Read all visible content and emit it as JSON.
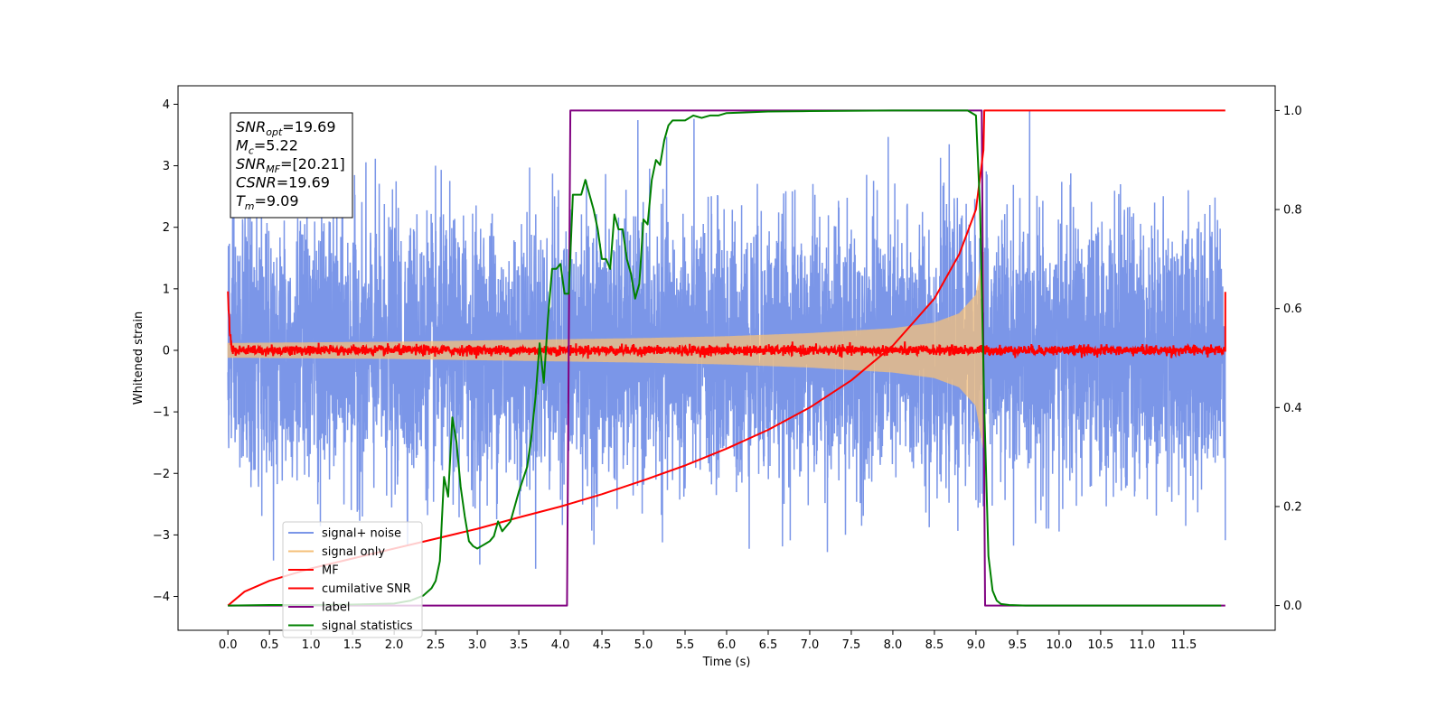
{
  "chart_data": {
    "type": "line",
    "title": "",
    "xlabel": "Time (s)",
    "ylabel": "Whitened strain",
    "y2label": "",
    "xlim": [
      -0.6,
      12.6
    ],
    "ylim": [
      -4.55,
      4.3
    ],
    "y2lim": [
      -0.05,
      1.05
    ],
    "x_ticks": [
      "0.0",
      "0.5",
      "1.0",
      "1.5",
      "2.0",
      "2.5",
      "3.0",
      "3.5",
      "4.0",
      "4.5",
      "5.0",
      "5.5",
      "6.0",
      "6.5",
      "7.0",
      "7.5",
      "8.0",
      "8.5",
      "9.0",
      "9.5",
      "10.0",
      "10.5",
      "11.0",
      "11.5"
    ],
    "y_ticks": [
      "−4",
      "−3",
      "−2",
      "−1",
      "0",
      "1",
      "2",
      "3",
      "4"
    ],
    "y2_ticks": [
      "0.0",
      "0.2",
      "0.4",
      "0.6",
      "0.8",
      "1.0"
    ],
    "grid": false,
    "legend_position": "lower-left",
    "annotation": {
      "lines": [
        {
          "base": "SNR",
          "sub": "opt",
          "value": "=19.69"
        },
        {
          "base": "M",
          "sub": "c",
          "value": "=5.22"
        },
        {
          "base": "SNR",
          "sub": "MF",
          "value": "=[20.21]"
        },
        {
          "base": "CSNR",
          "sub": "",
          "value": "=19.69"
        },
        {
          "base": "T",
          "sub": "m",
          "value": "=9.09"
        }
      ]
    },
    "series": [
      {
        "name": "signal+ noise",
        "color": "#7b96e8",
        "axis": "left",
        "description_values": {
          "t_start": 0.0,
          "t_end": 12.0,
          "noise_sigma": 1.05,
          "mean": 0.0
        }
      },
      {
        "name": "signal only",
        "color": "#f5c07a",
        "axis": "left",
        "envelope": {
          "x": [
            0.0,
            1.0,
            2.0,
            3.0,
            4.0,
            5.0,
            6.0,
            7.0,
            8.0,
            8.5,
            8.8,
            9.0,
            9.09
          ],
          "y": [
            0.12,
            0.13,
            0.14,
            0.16,
            0.18,
            0.2,
            0.23,
            0.28,
            0.36,
            0.45,
            0.6,
            0.9,
            1.6
          ]
        }
      },
      {
        "name": "MF",
        "color": "#ff0000",
        "axis": "left",
        "x": [
          0.0,
          0.02,
          0.05,
          12.0,
          12.03,
          12.05
        ],
        "y": [
          1.0,
          0.4,
          0.05,
          0.05,
          0.3,
          0.95
        ]
      },
      {
        "name": "cumilative SNR",
        "color": "#ff0000",
        "axis": "right",
        "x": [
          0.0,
          0.2,
          0.5,
          1.0,
          1.5,
          2.0,
          2.5,
          3.0,
          3.5,
          4.0,
          4.5,
          5.0,
          5.5,
          6.0,
          6.5,
          7.0,
          7.5,
          8.0,
          8.5,
          8.8,
          9.0,
          9.09,
          9.1,
          12.0
        ],
        "y": [
          0.0,
          0.028,
          0.05,
          0.075,
          0.095,
          0.115,
          0.135,
          0.155,
          0.178,
          0.2,
          0.225,
          0.253,
          0.283,
          0.317,
          0.355,
          0.4,
          0.455,
          0.525,
          0.62,
          0.71,
          0.8,
          0.92,
          1.0,
          1.0
        ]
      },
      {
        "name": "label",
        "color": "#800080",
        "axis": "right",
        "x": [
          0.0,
          4.08,
          4.12,
          9.07,
          9.11,
          12.0
        ],
        "y": [
          0.0,
          0.0,
          1.0,
          1.0,
          0.0,
          0.0
        ]
      },
      {
        "name": "signal statistics",
        "color": "#008000",
        "axis": "right",
        "x": [
          0.0,
          0.5,
          1.0,
          1.5,
          2.0,
          2.2,
          2.35,
          2.45,
          2.5,
          2.55,
          2.6,
          2.65,
          2.7,
          2.75,
          2.8,
          2.85,
          2.9,
          2.95,
          3.0,
          3.05,
          3.1,
          3.15,
          3.2,
          3.25,
          3.3,
          3.35,
          3.4,
          3.5,
          3.6,
          3.65,
          3.7,
          3.75,
          3.8,
          3.85,
          3.9,
          3.95,
          4.0,
          4.05,
          4.1,
          4.15,
          4.2,
          4.25,
          4.3,
          4.35,
          4.4,
          4.45,
          4.5,
          4.55,
          4.6,
          4.65,
          4.7,
          4.75,
          4.8,
          4.85,
          4.9,
          4.95,
          5.0,
          5.05,
          5.1,
          5.15,
          5.2,
          5.25,
          5.3,
          5.35,
          5.4,
          5.5,
          5.6,
          5.7,
          5.8,
          5.9,
          6.0,
          6.2,
          6.5,
          7.0,
          8.0,
          8.5,
          8.9,
          9.0,
          9.05,
          9.1,
          9.15,
          9.2,
          9.25,
          9.3,
          9.4,
          9.6,
          10.0,
          11.0,
          11.95
        ],
        "y": [
          0.0,
          0.001,
          0.001,
          0.002,
          0.004,
          0.01,
          0.02,
          0.035,
          0.05,
          0.09,
          0.26,
          0.22,
          0.38,
          0.33,
          0.24,
          0.18,
          0.13,
          0.12,
          0.115,
          0.12,
          0.125,
          0.13,
          0.14,
          0.17,
          0.15,
          0.16,
          0.17,
          0.23,
          0.28,
          0.34,
          0.42,
          0.53,
          0.45,
          0.58,
          0.68,
          0.68,
          0.69,
          0.63,
          0.63,
          0.83,
          0.83,
          0.83,
          0.86,
          0.83,
          0.8,
          0.76,
          0.7,
          0.7,
          0.68,
          0.79,
          0.76,
          0.76,
          0.7,
          0.67,
          0.62,
          0.65,
          0.78,
          0.77,
          0.86,
          0.9,
          0.89,
          0.94,
          0.97,
          0.98,
          0.98,
          0.98,
          0.99,
          0.985,
          0.99,
          0.99,
          0.995,
          0.996,
          0.998,
          0.999,
          1.0,
          1.0,
          1.0,
          0.99,
          0.8,
          0.4,
          0.1,
          0.03,
          0.01,
          0.003,
          0.001,
          0.0,
          0.0,
          0.0,
          0.0
        ]
      }
    ]
  }
}
